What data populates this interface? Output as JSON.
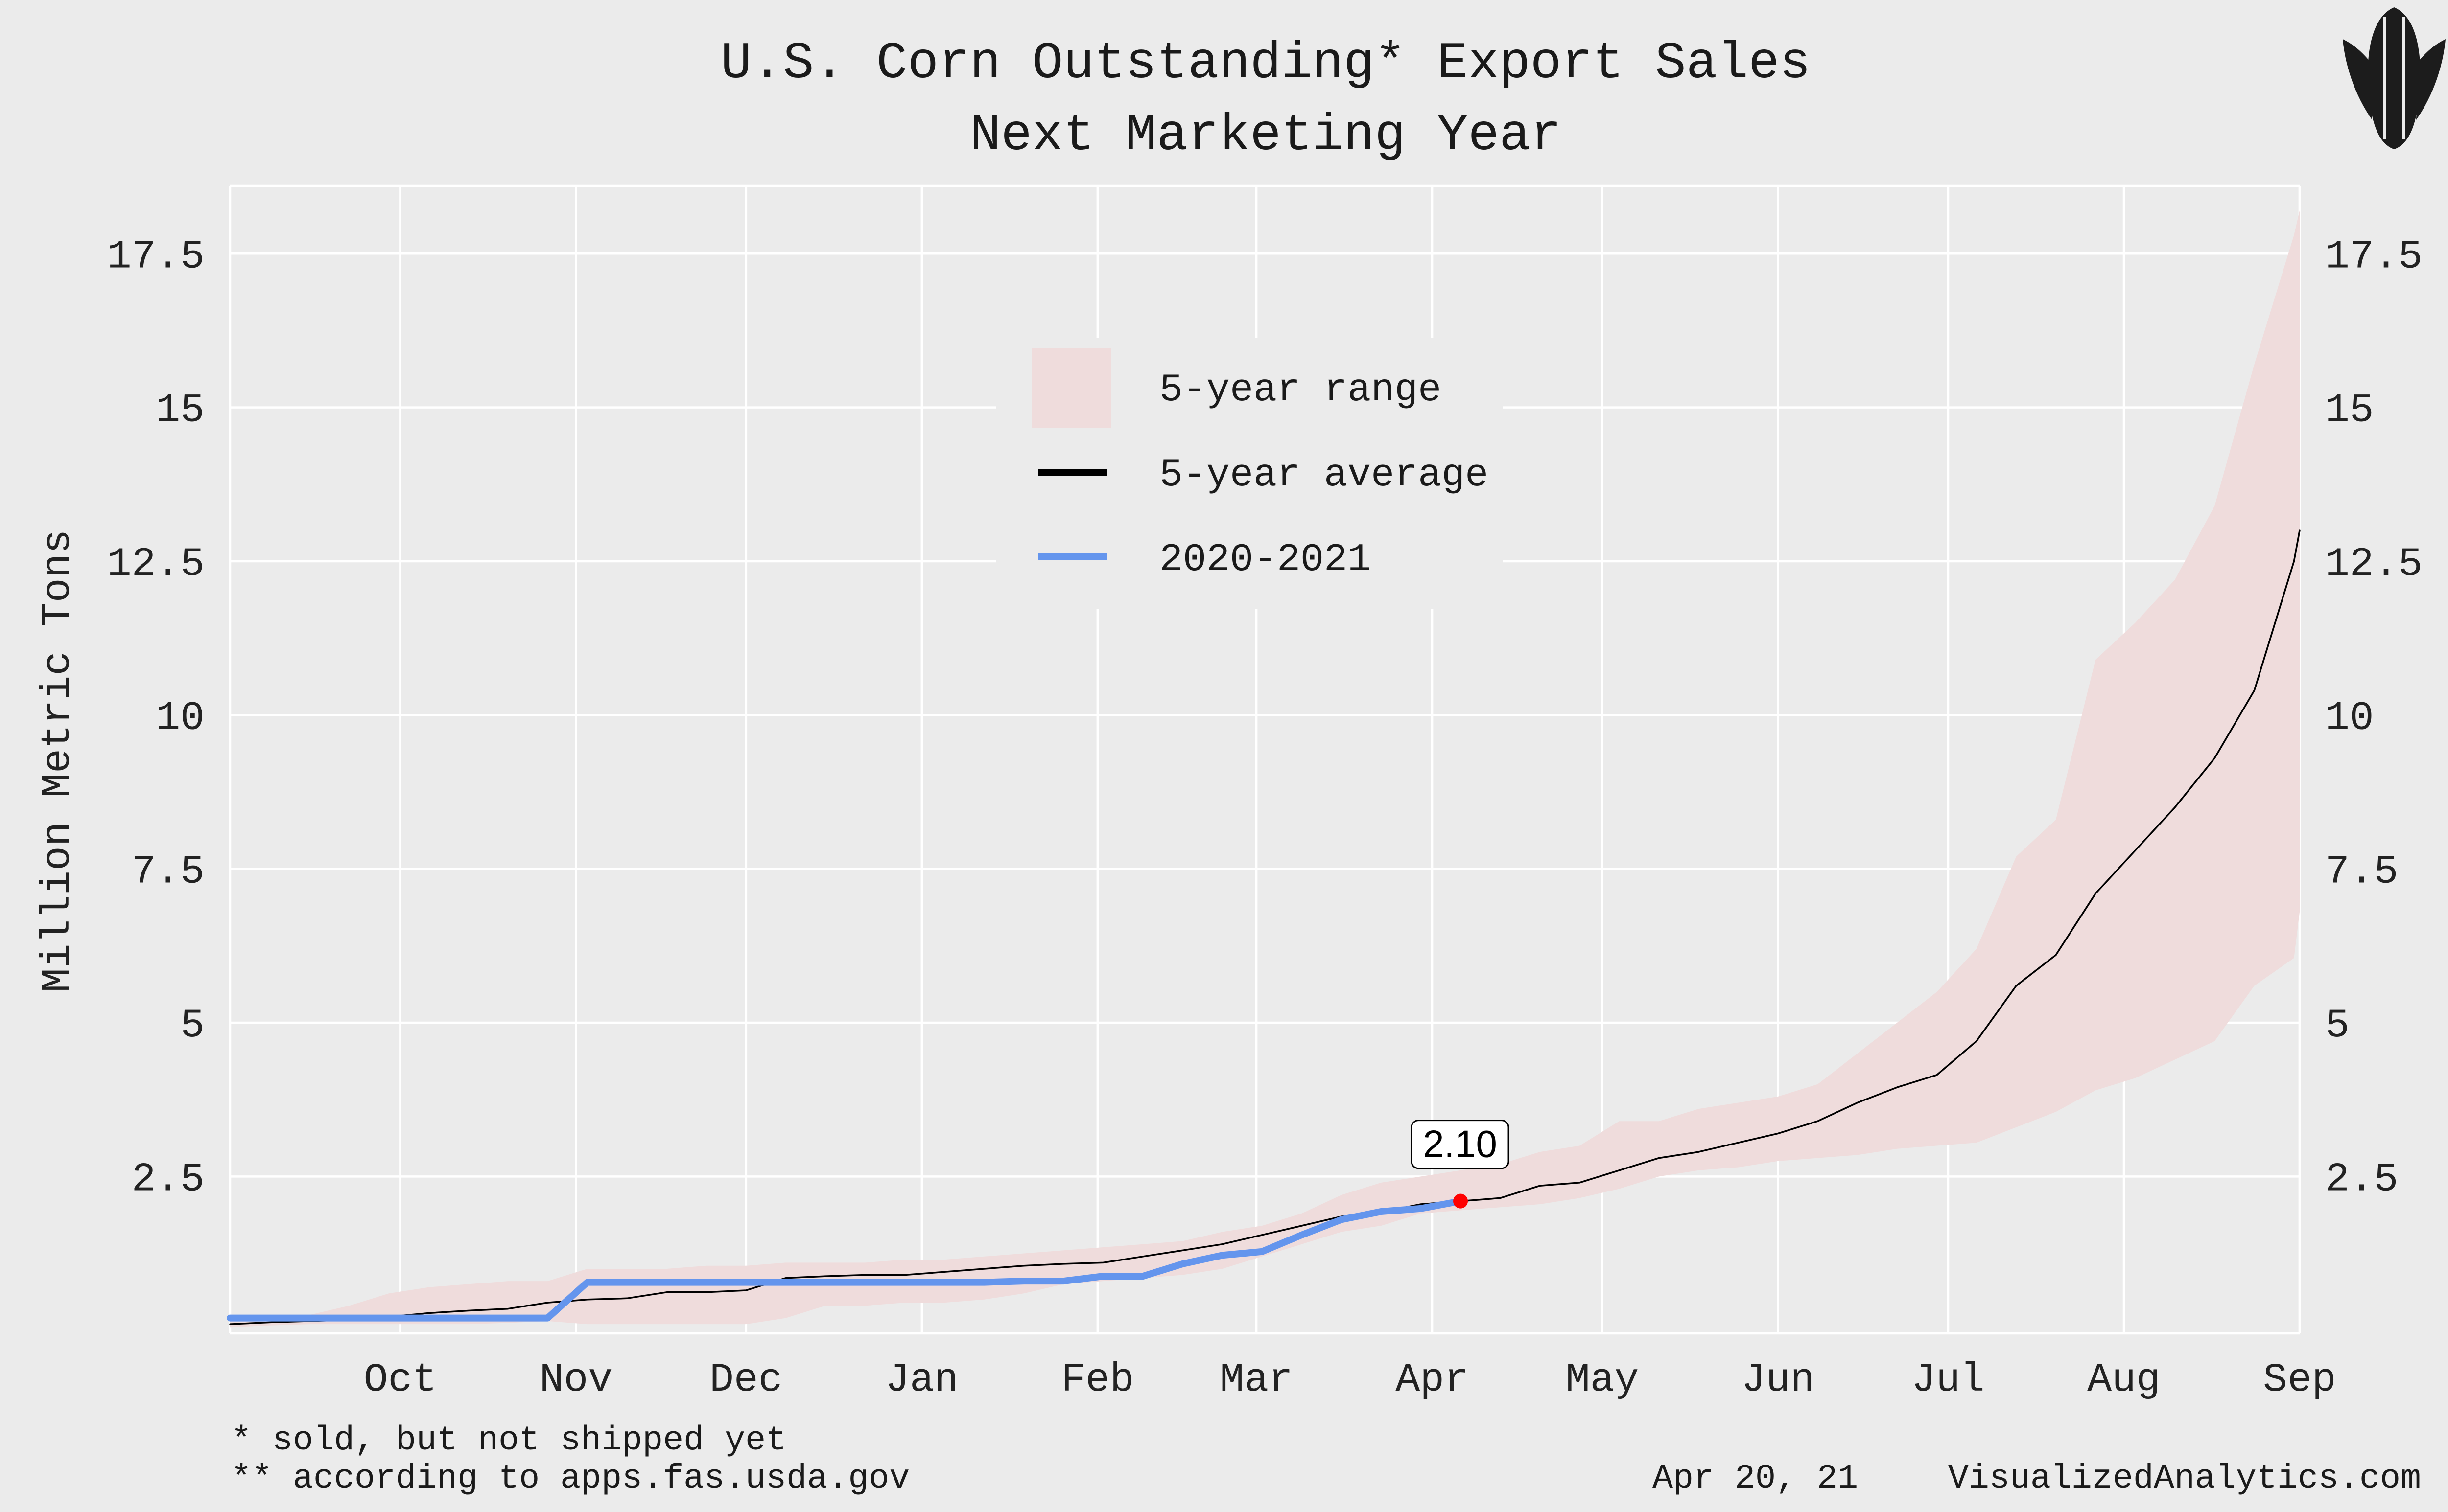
{
  "chart_data": {
    "type": "line",
    "title": "U.S. Corn Outstanding* Export Sales",
    "subtitle": "Next Marketing Year",
    "ylabel": "Million Metric Tons",
    "xlabel": "",
    "ylim": [
      -0.05,
      18.6
    ],
    "y_ticks": [
      2.5,
      5,
      7.5,
      10,
      12.5,
      15,
      17.5
    ],
    "y_tick_labels": [
      "2.5",
      "5",
      "7.5",
      "10",
      "12.5",
      "15",
      "17.5"
    ],
    "x_start": "2020-09-01",
    "x_end": "2021-09-01",
    "x_ticks": [
      "2020-10-01",
      "2020-11-01",
      "2020-12-01",
      "2021-01-01",
      "2021-02-01",
      "2021-03-01",
      "2021-04-01",
      "2021-05-01",
      "2021-06-01",
      "2021-07-01",
      "2021-08-01",
      "2021-09-01"
    ],
    "x_tick_labels": [
      "Oct",
      "Nov",
      "Dec",
      "Jan",
      "Feb",
      "Mar",
      "Apr",
      "May",
      "Jun",
      "Jul",
      "Aug",
      "Sep"
    ],
    "grid": true,
    "legend_position": "top-center",
    "series": [
      {
        "name": "5-year range",
        "kind": "range",
        "color": "#efdcdc",
        "x": [
          "2020-09-01",
          "2020-09-08",
          "2020-09-15",
          "2020-09-22",
          "2020-09-29",
          "2020-10-06",
          "2020-10-13",
          "2020-10-20",
          "2020-10-27",
          "2020-11-03",
          "2020-11-10",
          "2020-11-17",
          "2020-11-24",
          "2020-12-01",
          "2020-12-08",
          "2020-12-15",
          "2020-12-22",
          "2020-12-29",
          "2021-01-05",
          "2021-01-12",
          "2021-01-19",
          "2021-01-26",
          "2021-02-02",
          "2021-02-09",
          "2021-02-16",
          "2021-02-23",
          "2021-03-02",
          "2021-03-09",
          "2021-03-16",
          "2021-03-23",
          "2021-03-30",
          "2021-04-06",
          "2021-04-13",
          "2021-04-20",
          "2021-04-27",
          "2021-05-04",
          "2021-05-11",
          "2021-05-18",
          "2021-05-25",
          "2021-06-01",
          "2021-06-08",
          "2021-06-15",
          "2021-06-22",
          "2021-06-29",
          "2021-07-06",
          "2021-07-13",
          "2021-07-20",
          "2021-07-27",
          "2021-08-03",
          "2021-08-10",
          "2021-08-17",
          "2021-08-24",
          "2021-08-31",
          "2021-09-01"
        ],
        "low": [
          0.05,
          0.08,
          0.1,
          0.1,
          0.1,
          0.1,
          0.1,
          0.12,
          0.15,
          0.1,
          0.1,
          0.1,
          0.1,
          0.1,
          0.2,
          0.4,
          0.4,
          0.45,
          0.45,
          0.5,
          0.6,
          0.75,
          0.8,
          0.85,
          0.9,
          1.0,
          1.2,
          1.4,
          1.6,
          1.7,
          1.9,
          1.95,
          2.0,
          2.05,
          2.15,
          2.3,
          2.5,
          2.6,
          2.65,
          2.75,
          2.8,
          2.85,
          2.95,
          3.0,
          3.05,
          3.3,
          3.55,
          3.9,
          4.1,
          4.4,
          4.7,
          5.6,
          6.05,
          6.8
        ],
        "high": [
          0.15,
          0.2,
          0.25,
          0.4,
          0.6,
          0.7,
          0.75,
          0.8,
          0.8,
          1.0,
          1.0,
          1.0,
          1.05,
          1.05,
          1.1,
          1.1,
          1.1,
          1.15,
          1.15,
          1.2,
          1.25,
          1.3,
          1.35,
          1.4,
          1.45,
          1.6,
          1.7,
          1.9,
          2.2,
          2.4,
          2.5,
          2.6,
          2.7,
          2.9,
          3.0,
          3.4,
          3.4,
          3.6,
          3.7,
          3.8,
          4.0,
          4.5,
          5.0,
          5.5,
          6.2,
          7.7,
          8.3,
          10.9,
          11.5,
          12.2,
          13.4,
          15.7,
          17.8,
          18.2
        ]
      },
      {
        "name": "5-year average",
        "kind": "line",
        "color": "#000000",
        "x": [
          "2020-09-01",
          "2020-09-08",
          "2020-09-15",
          "2020-09-22",
          "2020-09-29",
          "2020-10-06",
          "2020-10-13",
          "2020-10-20",
          "2020-10-27",
          "2020-11-03",
          "2020-11-10",
          "2020-11-17",
          "2020-11-24",
          "2020-12-01",
          "2020-12-08",
          "2020-12-15",
          "2020-12-22",
          "2020-12-29",
          "2021-01-05",
          "2021-01-12",
          "2021-01-19",
          "2021-01-26",
          "2021-02-02",
          "2021-02-09",
          "2021-02-16",
          "2021-02-23",
          "2021-03-02",
          "2021-03-09",
          "2021-03-16",
          "2021-03-23",
          "2021-03-30",
          "2021-04-06",
          "2021-04-13",
          "2021-04-20",
          "2021-04-27",
          "2021-05-04",
          "2021-05-11",
          "2021-05-18",
          "2021-05-25",
          "2021-06-01",
          "2021-06-08",
          "2021-06-15",
          "2021-06-22",
          "2021-06-29",
          "2021-07-06",
          "2021-07-13",
          "2021-07-20",
          "2021-07-27",
          "2021-08-03",
          "2021-08-10",
          "2021-08-17",
          "2021-08-24",
          "2021-08-31",
          "2021-09-01"
        ],
        "y": [
          0.1,
          0.13,
          0.15,
          0.17,
          0.22,
          0.28,
          0.32,
          0.35,
          0.45,
          0.5,
          0.52,
          0.62,
          0.62,
          0.65,
          0.85,
          0.88,
          0.9,
          0.9,
          0.95,
          1.0,
          1.05,
          1.08,
          1.1,
          1.2,
          1.3,
          1.4,
          1.55,
          1.7,
          1.85,
          1.92,
          2.05,
          2.1,
          2.15,
          2.35,
          2.4,
          2.6,
          2.8,
          2.9,
          3.05,
          3.2,
          3.4,
          3.7,
          3.95,
          4.15,
          4.7,
          5.6,
          6.1,
          7.1,
          7.8,
          8.5,
          9.3,
          10.4,
          12.5,
          13.0
        ]
      },
      {
        "name": "2020-2021",
        "kind": "line",
        "color": "#6495ed",
        "x": [
          "2020-09-01",
          "2020-09-08",
          "2020-09-15",
          "2020-09-22",
          "2020-09-29",
          "2020-10-06",
          "2020-10-13",
          "2020-10-20",
          "2020-10-27",
          "2020-11-03",
          "2020-11-10",
          "2020-11-17",
          "2020-11-24",
          "2020-12-01",
          "2020-12-08",
          "2020-12-15",
          "2020-12-22",
          "2020-12-29",
          "2021-01-05",
          "2021-01-12",
          "2021-01-19",
          "2021-01-26",
          "2021-02-02",
          "2021-02-09",
          "2021-02-16",
          "2021-02-23",
          "2021-03-02",
          "2021-03-09",
          "2021-03-16",
          "2021-03-23",
          "2021-03-30",
          "2021-04-06"
        ],
        "y": [
          0.2,
          0.2,
          0.2,
          0.2,
          0.2,
          0.2,
          0.2,
          0.2,
          0.2,
          0.78,
          0.78,
          0.78,
          0.78,
          0.78,
          0.78,
          0.78,
          0.78,
          0.78,
          0.78,
          0.78,
          0.8,
          0.8,
          0.88,
          0.88,
          1.08,
          1.22,
          1.28,
          1.55,
          1.8,
          1.93,
          1.98,
          2.1
        ]
      }
    ],
    "annotations": [
      {
        "x": "2021-04-06",
        "y": 2.1,
        "label": "2.10",
        "marker_color": "#ff0000"
      }
    ]
  },
  "legend": {
    "range_label": "5-year range",
    "average_label": "5-year average",
    "current_label": "2020-2021"
  },
  "footer": {
    "note1": "* sold, but not shipped yet",
    "note2": "** according to apps.fas.usda.gov",
    "date": "Apr 20, 21",
    "site": "VisualizedAnalytics.com"
  },
  "colors": {
    "background": "#ebebeb",
    "range_fill": "#efdcdc",
    "average_line": "#000000",
    "current_line": "#6495ed",
    "marker": "#ff0000"
  },
  "logo": {
    "icon": "corn-cob-icon"
  }
}
